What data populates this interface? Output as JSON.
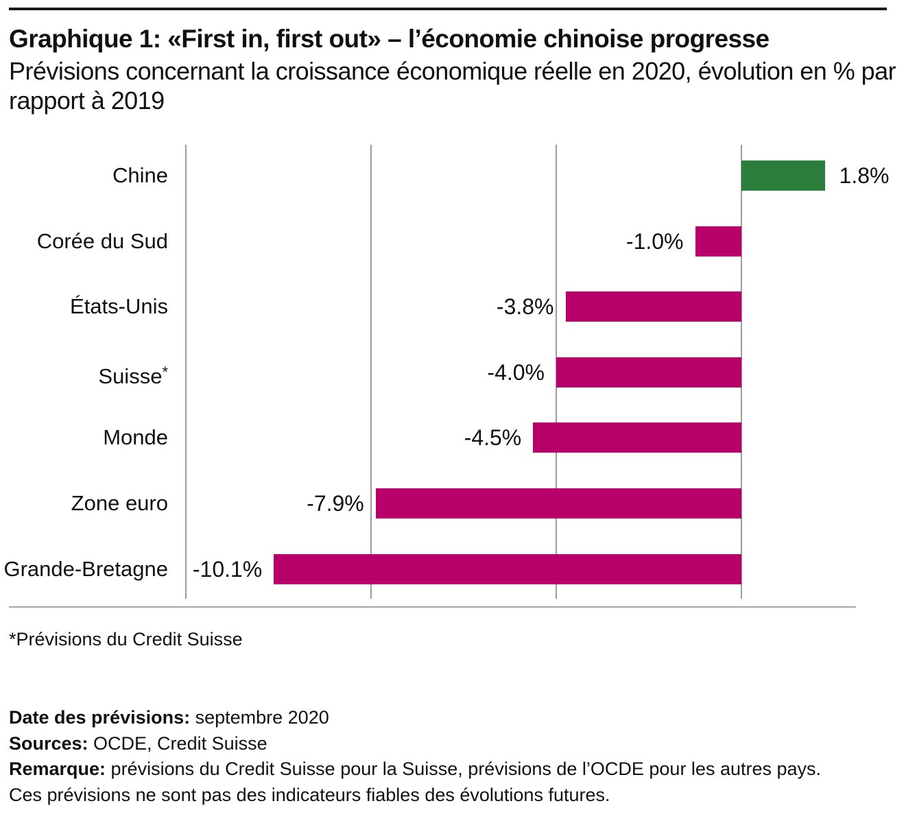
{
  "header": {
    "title": "Graphique 1: «First in, first out» – l’économie chinoise progresse",
    "subtitle_lines": [
      "Prévisions concernant la croissance économique réelle en 2020, évolution en % par",
      "rapport à 2019"
    ]
  },
  "chart_data": {
    "type": "bar",
    "orientation": "horizontal",
    "title": "Graphique 1: «First in, first out» – l’économie chinoise progresse",
    "subtitle": "Prévisions concernant la croissance économique réelle en 2020, évolution en % par rapport à 2019",
    "categories": [
      "Chine",
      "Corée du Sud",
      "États-Unis",
      "Suisse*",
      "Monde",
      "Zone euro",
      "Grande-Bretagne"
    ],
    "values": [
      1.8,
      -1.0,
      -3.8,
      -4.0,
      -4.5,
      -7.9,
      -10.1
    ],
    "value_labels": [
      "1.8%",
      "-1.0%",
      "-3.8%",
      "-4.0%",
      "-4.5%",
      "-7.9%",
      "-10.1%"
    ],
    "xlim": [
      -12,
      2.5
    ],
    "gridline_values": [
      -12,
      -8,
      -4,
      0
    ],
    "grid": true,
    "legend": false,
    "xlabel": "",
    "ylabel": "",
    "colors": {
      "positive": "#2b7e3b",
      "negative": "#b8006b",
      "gridline": "#9b9b9b"
    }
  },
  "footnote": "*Prévisions du Credit Suisse",
  "notes": {
    "date_label": "Date des prévisions:",
    "date_text": " septembre 2020",
    "sources_label": "Sources:",
    "sources_text": " OCDE, Credit Suisse",
    "remark_label": "Remarque:",
    "remark_text": " prévisions du Credit Suisse pour la Suisse, prévisions de l’OCDE pour les autres pays.",
    "remark_text2": "Ces prévisions ne sont pas des indicateurs fiables des évolutions futures."
  }
}
